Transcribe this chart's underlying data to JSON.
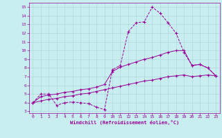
{
  "title": "",
  "xlabel": "Windchill (Refroidissement éolien,°C)",
  "ylabel": "",
  "xlim": [
    -0.5,
    23.5
  ],
  "ylim": [
    2.8,
    15.5
  ],
  "xticks": [
    0,
    1,
    2,
    3,
    4,
    5,
    6,
    7,
    8,
    9,
    10,
    11,
    12,
    13,
    14,
    15,
    16,
    17,
    18,
    19,
    20,
    21,
    22,
    23
  ],
  "yticks": [
    3,
    4,
    5,
    6,
    7,
    8,
    9,
    10,
    11,
    12,
    13,
    14,
    15
  ],
  "bg_color": "#c8eef0",
  "grid_color": "#b0d8dc",
  "line_color": "#990099",
  "line1_x": [
    0,
    1,
    2,
    3,
    4,
    5,
    6,
    7,
    8,
    9,
    10,
    11,
    12,
    13,
    14,
    15,
    16,
    17,
    18,
    19,
    20,
    21,
    22,
    23
  ],
  "line1_y": [
    4.0,
    5.0,
    5.0,
    3.7,
    4.0,
    4.1,
    4.0,
    3.9,
    3.5,
    3.2,
    7.8,
    8.3,
    12.2,
    13.2,
    13.3,
    15.0,
    14.3,
    13.2,
    12.0,
    9.8,
    8.3,
    8.4,
    8.0,
    7.1
  ],
  "line2_x": [
    0,
    1,
    2,
    3,
    4,
    5,
    6,
    7,
    8,
    9,
    10,
    11,
    12,
    13,
    14,
    15,
    16,
    17,
    18,
    19,
    20,
    21,
    22,
    23
  ],
  "line2_y": [
    4.0,
    4.7,
    4.9,
    5.0,
    5.2,
    5.3,
    5.5,
    5.6,
    5.8,
    6.1,
    7.6,
    8.1,
    8.4,
    8.7,
    9.0,
    9.2,
    9.5,
    9.8,
    10.0,
    10.0,
    8.3,
    8.4,
    8.0,
    7.1
  ],
  "line3_x": [
    0,
    1,
    2,
    3,
    4,
    5,
    6,
    7,
    8,
    9,
    10,
    11,
    12,
    13,
    14,
    15,
    16,
    17,
    18,
    19,
    20,
    21,
    22,
    23
  ],
  "line3_y": [
    4.0,
    4.2,
    4.4,
    4.5,
    4.7,
    4.8,
    5.0,
    5.1,
    5.3,
    5.5,
    5.7,
    5.9,
    6.1,
    6.3,
    6.5,
    6.6,
    6.8,
    7.0,
    7.1,
    7.2,
    7.0,
    7.1,
    7.2,
    7.1
  ]
}
